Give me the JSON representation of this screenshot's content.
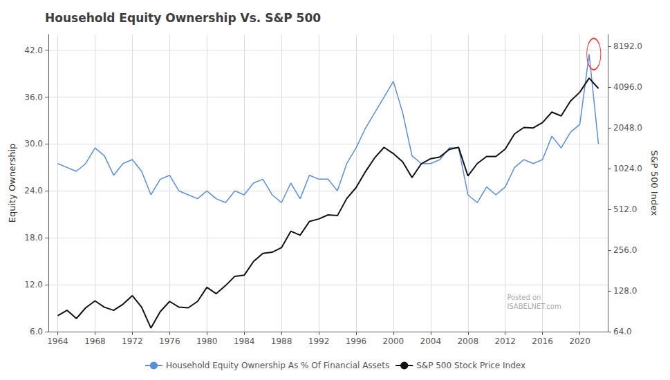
{
  "chart_data": {
    "type": "line",
    "title": "Household Equity Ownership Vs. S&P 500",
    "y_label": "Equity Ownership",
    "y2_label": "S&P 500 Index",
    "grid": true,
    "legend": "bottom",
    "log": "y2",
    "xlim": [
      1963,
      2023
    ],
    "xticks": [
      1964,
      1968,
      1972,
      1976,
      1980,
      1984,
      1988,
      1992,
      1996,
      2000,
      2004,
      2008,
      2012,
      2016,
      2020
    ],
    "ylim": [
      6.0,
      44.0
    ],
    "yticks": [
      {
        "value": 6.0,
        "label": "6.0"
      },
      {
        "value": 12.0,
        "label": "12.0"
      },
      {
        "value": 18.0,
        "label": "18.0"
      },
      {
        "value": 24.0,
        "label": "24.0"
      },
      {
        "value": 30.0,
        "label": "30.0"
      },
      {
        "value": 36.0,
        "label": "36.0"
      },
      {
        "value": 42.0,
        "label": "42.0"
      }
    ],
    "y2lim": [
      64.0,
      10000.0
    ],
    "y2ticks": [
      {
        "value": 64.0,
        "label": "64.0"
      },
      {
        "value": 128.0,
        "label": "128.0"
      },
      {
        "value": 256.0,
        "label": "256.0"
      },
      {
        "value": 512.0,
        "label": "512.0"
      },
      {
        "value": 1024.0,
        "label": "1024.0"
      },
      {
        "value": 2048.0,
        "label": "2048.0"
      },
      {
        "value": 4096.0,
        "label": "4096.0"
      },
      {
        "value": 8192.0,
        "label": "8192.0"
      }
    ],
    "x": [
      1964,
      1965,
      1966,
      1967,
      1968,
      1969,
      1970,
      1971,
      1972,
      1973,
      1974,
      1975,
      1976,
      1977,
      1978,
      1979,
      1980,
      1981,
      1982,
      1983,
      1984,
      1985,
      1986,
      1987,
      1988,
      1989,
      1990,
      1991,
      1992,
      1993,
      1994,
      1995,
      1996,
      1997,
      1998,
      1999,
      2000,
      2001,
      2002,
      2003,
      2004,
      2005,
      2006,
      2007,
      2008,
      2009,
      2010,
      2011,
      2012,
      2013,
      2014,
      2015,
      2016,
      2017,
      2018,
      2019,
      2020,
      2021,
      2022
    ],
    "series": [
      {
        "name": "Household Equity Ownership As % Of Financial Assets",
        "color": "#5b8dd9",
        "values": [
          27.5,
          27.0,
          26.5,
          27.5,
          29.5,
          28.5,
          26.0,
          27.5,
          28.0,
          26.5,
          23.5,
          25.5,
          26.0,
          24.0,
          23.5,
          23.0,
          24.0,
          23.0,
          22.5,
          24.0,
          23.5,
          25.0,
          25.5,
          23.5,
          22.5,
          25.0,
          23.0,
          26.0,
          25.5,
          25.5,
          24.0,
          27.5,
          29.5,
          32.0,
          34.0,
          36.0,
          38.0,
          34.0,
          28.5,
          27.5,
          27.5,
          28.0,
          29.5,
          29.5,
          23.5,
          22.5,
          24.5,
          23.5,
          24.5,
          27.0,
          28.0,
          27.5,
          28.0,
          31.0,
          29.5,
          31.5,
          32.5,
          41.5,
          30.0
        ]
      },
      {
        "name": "S&P 500 Stock Price Index",
        "color": "#111111",
        "axis": "y2",
        "values": [
          84,
          92,
          80,
          96,
          108,
          97,
          92,
          102,
          118,
          97,
          68,
          90,
          107,
          97,
          96,
          107,
          136,
          122,
          140,
          164,
          167,
          211,
          242,
          247,
          267,
          353,
          330,
          417,
          435,
          466,
          460,
          615,
          741,
          970,
          1229,
          1469,
          1320,
          1148,
          880,
          1111,
          1211,
          1248,
          1418,
          1468,
          903,
          1115,
          1257,
          1258,
          1426,
          1848,
          2059,
          2044,
          2239,
          2674,
          2507,
          3231,
          3756,
          4766,
          4000
        ]
      }
    ],
    "annotations": [
      {
        "text": "Posted on\nISABELNET.com",
        "color": "gray"
      },
      {
        "shape": "ellipse",
        "x": 2021.5,
        "y": 41.5,
        "color": "red"
      }
    ]
  }
}
